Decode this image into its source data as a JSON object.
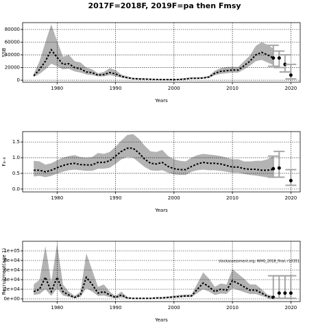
{
  "title": "2017F=2018F, 2019F=pa then Fmsy",
  "chart_data": [
    {
      "type": "line",
      "xlabel": "Years",
      "ylabel": "SSB",
      "x": [
        1976,
        1977,
        1978,
        1979,
        1980,
        1981,
        1982,
        1983,
        1984,
        1985,
        1986,
        1987,
        1988,
        1989,
        1990,
        1991,
        1992,
        1993,
        1994,
        1995,
        1996,
        1997,
        1998,
        1999,
        2000,
        2001,
        2002,
        2003,
        2004,
        2005,
        2006,
        2007,
        2008,
        2009,
        2010,
        2011,
        2012,
        2013,
        2014,
        2015,
        2016,
        2017
      ],
      "values": [
        7000,
        17000,
        30000,
        48000,
        36000,
        25000,
        26000,
        20000,
        18000,
        13000,
        12000,
        8000,
        9000,
        12000,
        10000,
        6000,
        4000,
        2500,
        2000,
        1800,
        1500,
        1200,
        1000,
        1000,
        1000,
        1200,
        2000,
        3000,
        3000,
        3500,
        5000,
        11000,
        14000,
        15000,
        16000,
        16000,
        23000,
        30000,
        40000,
        44000,
        40000,
        35000
      ],
      "high": [
        10000,
        30000,
        60000,
        88000,
        62000,
        37000,
        40000,
        30000,
        28000,
        20000,
        17000,
        11000,
        13000,
        19000,
        16000,
        9000,
        6000,
        4000,
        3500,
        3000,
        2500,
        2000,
        2000,
        2000,
        2000,
        2500,
        3500,
        4500,
        4500,
        5000,
        7000,
        15000,
        19000,
        21000,
        21000,
        21000,
        30000,
        39000,
        54000,
        60000,
        56000,
        50000
      ],
      "low": [
        5000,
        10000,
        17000,
        26000,
        22000,
        17000,
        18000,
        14000,
        12000,
        9000,
        8000,
        6000,
        6000,
        8000,
        6000,
        4000,
        2500,
        1500,
        1000,
        1000,
        800,
        600,
        500,
        500,
        500,
        600,
        1000,
        2000,
        2000,
        2500,
        3500,
        8000,
        10000,
        11000,
        12000,
        12000,
        17000,
        23000,
        30000,
        32000,
        28000,
        24000
      ],
      "color": "#000000",
      "band_color": "#b3b3b3",
      "errorbar_color": "#a6a6a6",
      "forecast": {
        "x": [
          2017,
          2018,
          2019,
          2020
        ],
        "values": [
          35000,
          35000,
          25000,
          8000
        ],
        "low": [
          22000,
          20000,
          13000,
          2000
        ],
        "high": [
          55000,
          46000,
          40000,
          25000
        ]
      },
      "xlim": [
        1974.1,
        2021.6
      ],
      "xticks": [
        1980,
        1990,
        2000,
        2010,
        2020
      ],
      "ylim": [
        -3200,
        90800
      ],
      "yticks": [
        0,
        20000,
        40000,
        60000,
        80000
      ],
      "grid": true
    },
    {
      "type": "line",
      "xlabel": "Years",
      "ylabel": "F₄₋₈",
      "x": [
        1976,
        1977,
        1978,
        1979,
        1980,
        1981,
        1982,
        1983,
        1984,
        1985,
        1986,
        1987,
        1988,
        1989,
        1990,
        1991,
        1992,
        1993,
        1994,
        1995,
        1996,
        1997,
        1998,
        1999,
        2000,
        2001,
        2002,
        2003,
        2004,
        2005,
        2006,
        2007,
        2008,
        2009,
        2010,
        2011,
        2012,
        2013,
        2014,
        2015,
        2016,
        2017
      ],
      "values": [
        0.6,
        0.6,
        0.55,
        0.6,
        0.68,
        0.75,
        0.8,
        0.82,
        0.78,
        0.77,
        0.77,
        0.85,
        0.85,
        0.9,
        1.05,
        1.2,
        1.3,
        1.3,
        1.15,
        0.95,
        0.82,
        0.8,
        0.85,
        0.72,
        0.65,
        0.62,
        0.62,
        0.72,
        0.8,
        0.85,
        0.82,
        0.82,
        0.8,
        0.75,
        0.7,
        0.7,
        0.65,
        0.63,
        0.63,
        0.6,
        0.6,
        0.63
      ],
      "high": [
        0.9,
        0.88,
        0.78,
        0.82,
        0.92,
        1.0,
        1.05,
        1.08,
        1.02,
        1.0,
        1.02,
        1.15,
        1.12,
        1.18,
        1.35,
        1.55,
        1.72,
        1.75,
        1.6,
        1.38,
        1.2,
        1.18,
        1.25,
        1.05,
        0.95,
        0.9,
        0.88,
        1.0,
        1.08,
        1.12,
        1.1,
        1.08,
        1.05,
        1.0,
        0.95,
        0.95,
        0.88,
        0.88,
        0.9,
        0.9,
        0.95,
        1.05
      ],
      "low": [
        0.4,
        0.42,
        0.38,
        0.42,
        0.5,
        0.55,
        0.6,
        0.62,
        0.6,
        0.58,
        0.58,
        0.65,
        0.65,
        0.68,
        0.8,
        0.95,
        1.02,
        1.0,
        0.85,
        0.7,
        0.6,
        0.58,
        0.6,
        0.52,
        0.47,
        0.45,
        0.45,
        0.55,
        0.6,
        0.62,
        0.6,
        0.6,
        0.58,
        0.55,
        0.52,
        0.52,
        0.48,
        0.45,
        0.43,
        0.4,
        0.37,
        0.35
      ],
      "color": "#000000",
      "band_color": "#b3b3b3",
      "errorbar_color": "#a6a6a6",
      "forecast": {
        "x": [
          2017,
          2018,
          2020
        ],
        "values": [
          0.65,
          0.67,
          0.27
        ],
        "low": [
          0.38,
          0.38,
          0.12
        ],
        "high": [
          1.05,
          1.2,
          0.62
        ]
      },
      "xlim": [
        1974.1,
        2021.6
      ],
      "xticks": [
        1980,
        1990,
        2000,
        2010,
        2020
      ],
      "ylim": [
        -0.09,
        1.83
      ],
      "yticks": [
        {
          "value": 0,
          "label": "0.0"
        },
        0.5,
        {
          "value": 1,
          "label": "1.0"
        },
        1.5
      ],
      "grid": true
    },
    {
      "type": "line",
      "xlabel": "Years",
      "ylabel": "Recruitment(age 1)",
      "annotation": "stockassessment.org, WHG_2018_final, r10351",
      "x": [
        1976,
        1977,
        1978,
        1979,
        1980,
        1981,
        1982,
        1983,
        1984,
        1985,
        1986,
        1987,
        1988,
        1989,
        1990,
        1991,
        1992,
        1993,
        1994,
        1995,
        1996,
        1997,
        1998,
        1999,
        2000,
        2001,
        2002,
        2003,
        2004,
        2005,
        2006,
        2007,
        2008,
        2009,
        2010,
        2011,
        2012,
        2013,
        2014,
        2015,
        2016,
        2017
      ],
      "values": [
        15000,
        20000,
        45000,
        15000,
        45000,
        15000,
        8000,
        3000,
        8000,
        45000,
        30000,
        12000,
        15000,
        8000,
        3000,
        8000,
        2000,
        1000,
        1000,
        1000,
        1000,
        2000,
        2000,
        3000,
        4000,
        5000,
        6000,
        6000,
        20000,
        33000,
        25000,
        15000,
        20000,
        18000,
        38000,
        32000,
        25000,
        18000,
        18000,
        12000,
        5000,
        3000
      ],
      "high": [
        30000,
        40000,
        110000,
        35000,
        115000,
        30000,
        15000,
        6000,
        15000,
        95000,
        60000,
        25000,
        30000,
        15000,
        6000,
        15000,
        4000,
        2000,
        2000,
        2000,
        2000,
        3500,
        3500,
        5000,
        6500,
        8000,
        9000,
        9000,
        32000,
        55000,
        42000,
        25000,
        32000,
        30000,
        62000,
        52000,
        42000,
        30000,
        30000,
        20000,
        9000,
        6000
      ],
      "low": [
        8000,
        10000,
        20000,
        6000,
        22000,
        7000,
        4000,
        1000,
        4000,
        22000,
        15000,
        6000,
        7000,
        3500,
        1000,
        3000,
        800,
        400,
        400,
        400,
        500,
        1000,
        1000,
        1500,
        2000,
        3000,
        3500,
        3500,
        12000,
        20000,
        15000,
        8000,
        11000,
        10000,
        22000,
        18000,
        14000,
        10000,
        10000,
        6000,
        2000,
        1000
      ],
      "color": "#000000",
      "band_color": "#b3b3b3",
      "errorbar_color": "#a6a6a6",
      "forecast": {
        "x": [
          2017,
          2018,
          2019,
          2020
        ],
        "values": [
          3000,
          12000,
          12000,
          12000
        ],
        "low": [
          1000,
          1000,
          1000,
          1000
        ],
        "high": [
          48000,
          48000,
          48000,
          48000
        ]
      },
      "xlim": [
        1974.1,
        2021.6
      ],
      "xticks": [
        1980,
        1990,
        2000,
        2010,
        2020
      ],
      "ylim": [
        -5700,
        120000
      ],
      "yticks": [
        {
          "value": 0,
          "label": "0e+00"
        },
        {
          "value": 20000,
          "label": "2e+04"
        },
        {
          "value": 40000,
          "label": "4e+04"
        },
        {
          "value": 60000,
          "label": "6e+04"
        },
        {
          "value": 80000,
          "label": "8e+04"
        },
        {
          "value": 100000,
          "label": "1e+05"
        }
      ],
      "grid": true
    }
  ]
}
